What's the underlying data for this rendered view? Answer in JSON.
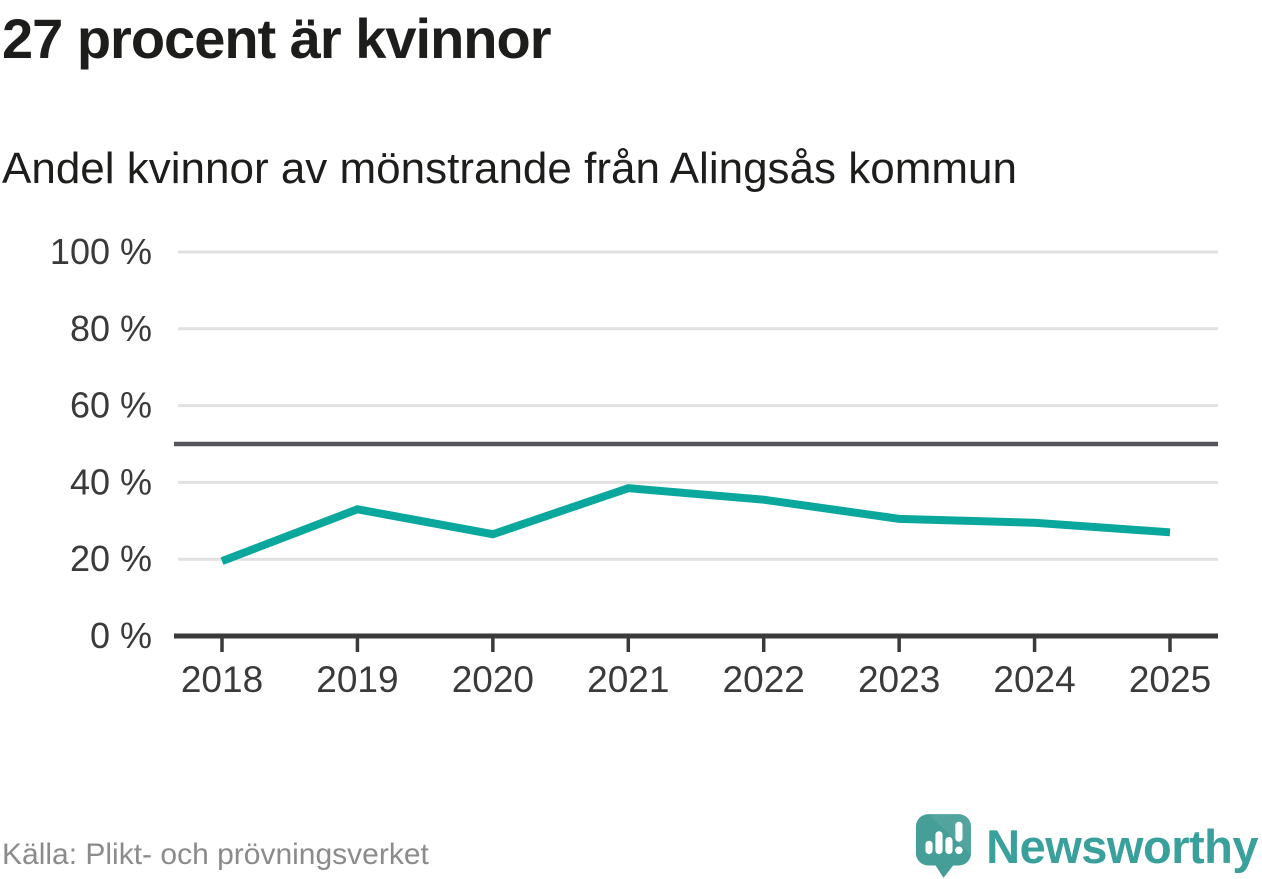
{
  "header": {
    "title": "27 procent är kvinnor",
    "subtitle": "Andel kvinnor av mönstrande från Alingsås kommun"
  },
  "chart_data": {
    "type": "line",
    "title": "27 procent är kvinnor",
    "subtitle": "Andel kvinnor av mönstrande från Alingsås kommun",
    "x": [
      "2018",
      "2019",
      "2020",
      "2021",
      "2022",
      "2023",
      "2024",
      "2025"
    ],
    "series": [
      {
        "name": "Andel kvinnor av mönstrande",
        "values": [
          19.5,
          33,
          26.5,
          38.5,
          35.5,
          30.5,
          29.5,
          27
        ]
      }
    ],
    "unit": "%",
    "ylim": [
      0,
      100
    ],
    "yticks": [
      0,
      20,
      40,
      60,
      80,
      100
    ],
    "ytick_label_suffix": " %",
    "reference_line_y": 50,
    "grid": true,
    "legend": "none",
    "colors": {
      "line": "#0aa79c",
      "reference_line": "#55555b",
      "gridline": "#e1e1e1",
      "axis": "#3a3a3a",
      "tick_label": "#3a3a3a"
    }
  },
  "footer": {
    "source": "Källa: Plikt- och prövningsverket",
    "brand": "Newsworthy",
    "brand_color": "#469e98"
  }
}
